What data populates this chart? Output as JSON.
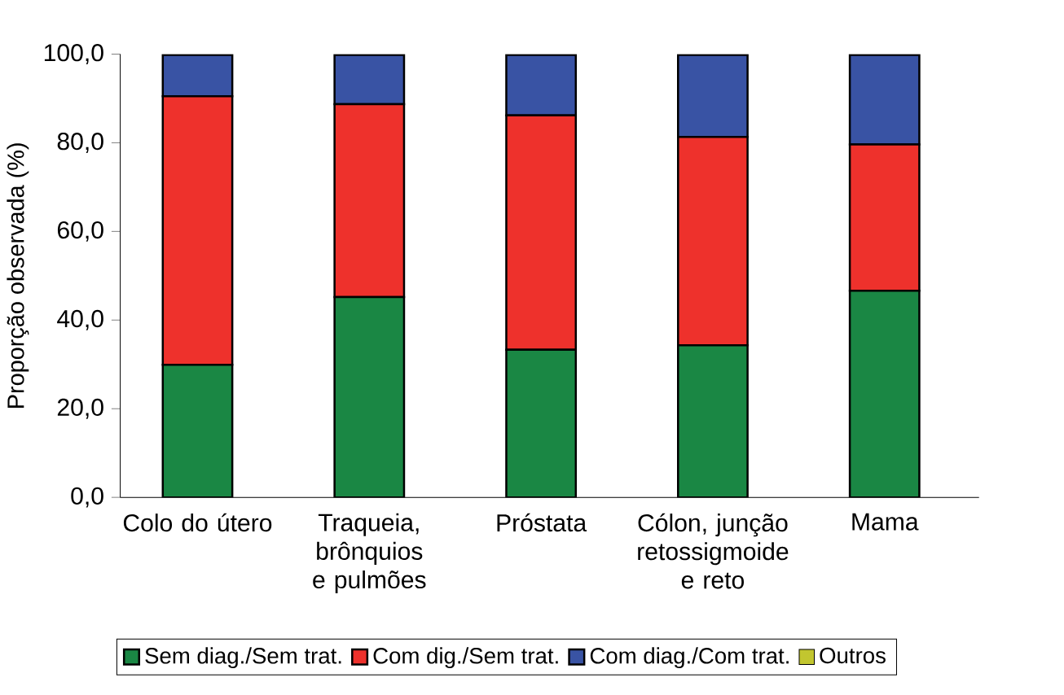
{
  "chart_data": {
    "type": "bar",
    "stacked": true,
    "ylabel": "Proporção observada (%)",
    "categories": [
      "Colo do útero",
      "Traqueia, brônquios e pulmões",
      "Próstata",
      "Cólon, junção retossigmoide e reto",
      "Mama"
    ],
    "series": [
      {
        "name": "Sem diag./Sem trat.",
        "color": "#1a8744",
        "values": [
          29.9,
          45.2,
          33.3,
          34.3,
          46.6
        ]
      },
      {
        "name": "Com dig./Sem trat.",
        "color": "#ee312c",
        "values": [
          60.6,
          43.5,
          52.9,
          47.0,
          33.0
        ]
      },
      {
        "name": "Com diag./Com trat.",
        "color": "#3953a4",
        "values": [
          9.3,
          11.1,
          13.6,
          18.5,
          20.2
        ]
      },
      {
        "name": "Outros",
        "color": "#c2c62f",
        "values": [
          null,
          null,
          null,
          null,
          null
        ]
      }
    ],
    "ylim": [
      0,
      100
    ],
    "yticks": [
      {
        "value": 0,
        "label": "0,0"
      },
      {
        "value": 20,
        "label": "20,0"
      },
      {
        "value": 40,
        "label": "40,0"
      },
      {
        "value": 60,
        "label": "60,0"
      },
      {
        "value": 80,
        "label": "80,0"
      },
      {
        "value": 100,
        "label": "100,0"
      }
    ],
    "legend": "bottom"
  }
}
